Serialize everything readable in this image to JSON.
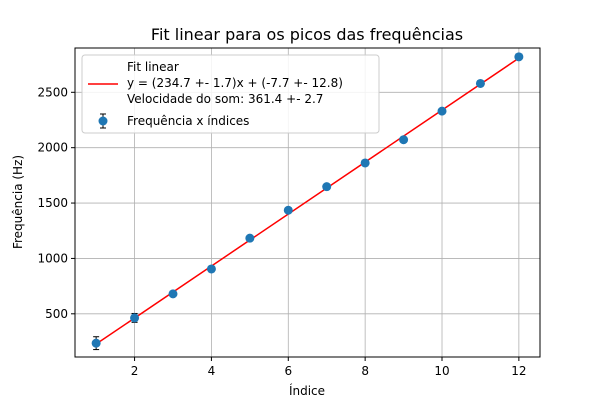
{
  "chart_data": {
    "type": "scatter",
    "title": "Fit linear para os picos das frequências",
    "xlabel": "Índice",
    "ylabel": "Frequência (Hz)",
    "xlim": [
      0.45,
      12.55
    ],
    "ylim": [
      110,
      2900
    ],
    "xticks": [
      2,
      4,
      6,
      8,
      10,
      12
    ],
    "yticks": [
      500,
      1000,
      1500,
      2000,
      2500
    ],
    "grid": true,
    "legend_position": "top-left",
    "legend": {
      "fit_label": "Fit linear",
      "equation": "y = (234.7 +- 1.7)x + (-7.7 +- 12.8)",
      "speed": "Velocidade do som: 361.4 +- 2.7",
      "points_label": "Frequência x índices"
    },
    "series": [
      {
        "name": "Frequência x índices",
        "kind": "scatter-errorbar",
        "color": "#1f77b4",
        "x": [
          1,
          2,
          3,
          4,
          5,
          6,
          7,
          8,
          9,
          10,
          11,
          12
        ],
        "y": [
          235,
          463,
          680,
          905,
          1183,
          1435,
          1648,
          1862,
          2072,
          2330,
          2580,
          2820
        ],
        "yerr": [
          58,
          40,
          20,
          20,
          15,
          12,
          12,
          12,
          12,
          12,
          12,
          18
        ]
      },
      {
        "name": "Fit linear",
        "kind": "line",
        "color": "#ff0000",
        "slope": 234.7,
        "intercept": -7.7,
        "x_range": [
          1,
          12
        ]
      }
    ]
  }
}
